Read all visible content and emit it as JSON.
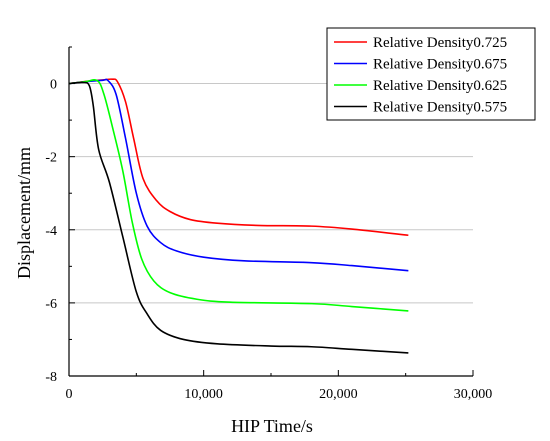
{
  "chart_data": {
    "type": "line",
    "title": "",
    "xlabel": "HIP Time/s",
    "ylabel": "Displacement/mm",
    "xlim": [
      0,
      30000
    ],
    "ylim": [
      -8,
      1
    ],
    "x_ticks": [
      0,
      10000,
      20000,
      30000
    ],
    "x_tick_labels": [
      "0",
      "10,000",
      "20,000",
      "30,000"
    ],
    "y_ticks": [
      0,
      -2,
      -4,
      -6,
      -8
    ],
    "y_tick_labels": [
      "0",
      "-2",
      "-4",
      "-6",
      "-8"
    ],
    "grid": "horizontal",
    "legend_position": "top-right",
    "series": [
      {
        "name": "Relative Density0.725",
        "color": "#ff0000",
        "points": [
          [
            0,
            0
          ],
          [
            1500,
            0.07
          ],
          [
            2500,
            0.1
          ],
          [
            3200,
            0.12
          ],
          [
            3600,
            0.05
          ],
          [
            4200,
            -0.5
          ],
          [
            4800,
            -1.5
          ],
          [
            5500,
            -2.6
          ],
          [
            6500,
            -3.2
          ],
          [
            7500,
            -3.5
          ],
          [
            9000,
            -3.72
          ],
          [
            11000,
            -3.82
          ],
          [
            14000,
            -3.88
          ],
          [
            18000,
            -3.9
          ],
          [
            21000,
            -3.98
          ],
          [
            25200,
            -4.15
          ]
        ]
      },
      {
        "name": "Relative Density0.675",
        "color": "#0000ff",
        "points": [
          [
            0,
            0
          ],
          [
            1500,
            0.06
          ],
          [
            2500,
            0.09
          ],
          [
            2900,
            0.08
          ],
          [
            3500,
            -0.3
          ],
          [
            4200,
            -1.5
          ],
          [
            5000,
            -3.0
          ],
          [
            5800,
            -3.9
          ],
          [
            6800,
            -4.35
          ],
          [
            8000,
            -4.58
          ],
          [
            10000,
            -4.75
          ],
          [
            13000,
            -4.85
          ],
          [
            18000,
            -4.9
          ],
          [
            21000,
            -4.98
          ],
          [
            25200,
            -5.12
          ]
        ]
      },
      {
        "name": "Relative Density0.625",
        "color": "#00ff00",
        "points": [
          [
            0,
            0
          ],
          [
            1200,
            0.05
          ],
          [
            2100,
            0.08
          ],
          [
            2600,
            -0.3
          ],
          [
            3300,
            -1.3
          ],
          [
            4000,
            -2.4
          ],
          [
            4700,
            -3.8
          ],
          [
            5400,
            -4.8
          ],
          [
            6300,
            -5.4
          ],
          [
            7500,
            -5.72
          ],
          [
            9500,
            -5.9
          ],
          [
            12000,
            -5.98
          ],
          [
            18000,
            -6.02
          ],
          [
            21000,
            -6.1
          ],
          [
            25200,
            -6.22
          ]
        ]
      },
      {
        "name": "Relative Density0.575",
        "color": "#000000",
        "points": [
          [
            0,
            0
          ],
          [
            1000,
            0.03
          ],
          [
            1500,
            -0.05
          ],
          [
            1800,
            -0.6
          ],
          [
            2200,
            -1.8
          ],
          [
            3000,
            -2.7
          ],
          [
            4000,
            -4.2
          ],
          [
            5000,
            -5.7
          ],
          [
            5800,
            -6.3
          ],
          [
            6800,
            -6.75
          ],
          [
            8500,
            -7.0
          ],
          [
            11000,
            -7.12
          ],
          [
            15000,
            -7.18
          ],
          [
            18000,
            -7.2
          ],
          [
            21000,
            -7.27
          ],
          [
            25200,
            -7.37
          ]
        ]
      }
    ]
  }
}
